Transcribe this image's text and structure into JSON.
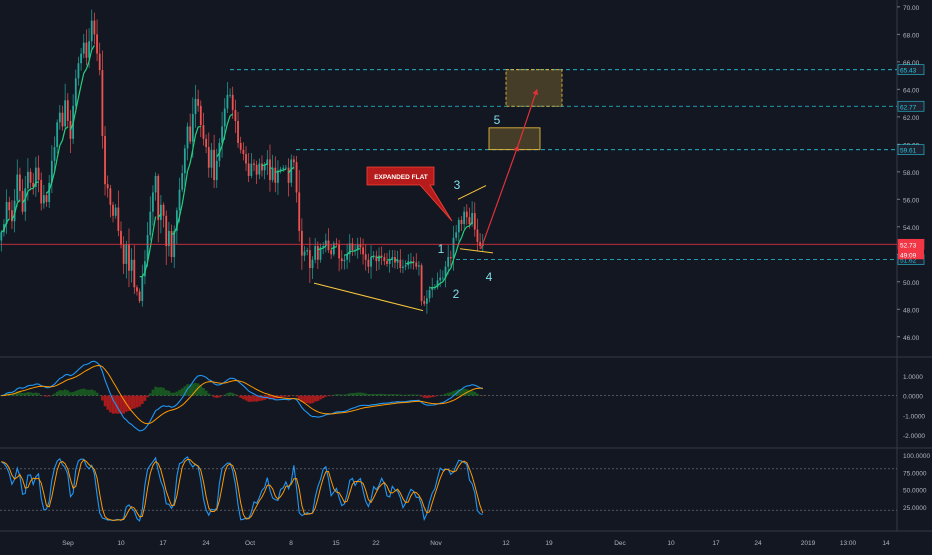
{
  "chart_data": {
    "type": "candlestick",
    "main_pane": {
      "y_axis_ticks": [
        70.0,
        68.0,
        66.0,
        64.0,
        62.0,
        60.0,
        58.0,
        56.0,
        54.0,
        52.0,
        50.0,
        48.0,
        46.0
      ],
      "ylim": [
        44.6,
        70.5
      ],
      "candle_closes": [
        53.6,
        54.2,
        55.8,
        55.2,
        54.4,
        55.9,
        57.8,
        56.6,
        55.1,
        56.8,
        58.0,
        57.2,
        56.9,
        58.3,
        57.4,
        55.7,
        56.3,
        55.8,
        57.2,
        58.8,
        59.8,
        61.6,
        62.3,
        61.3,
        63.2,
        61.7,
        60.4,
        62.8,
        64.8,
        65.9,
        66.6,
        67.4,
        66.3,
        67.5,
        69.0,
        68.0,
        66.6,
        65.4,
        60.6,
        57.1,
        56.8,
        55.6,
        54.8,
        55.4,
        53.7,
        52.7,
        51.3,
        52.7,
        50.8,
        51.6,
        49.6,
        49.3,
        48.6,
        50.4,
        51.5,
        53.4,
        55.1,
        56.5,
        57.7,
        54.5,
        55.6,
        54.8,
        52.6,
        53.7,
        51.8,
        53.7,
        55.2,
        56.7,
        57.9,
        59.7,
        61.3,
        60.2,
        62.2,
        63.3,
        62.8,
        61.4,
        60.4,
        59.8,
        58.3,
        59.6,
        57.4,
        58.8,
        60.1,
        61.3,
        62.6,
        63.6,
        63.6,
        62.5,
        61.7,
        60.1,
        59.6,
        59.3,
        58.6,
        57.7,
        58.6,
        58.5,
        57.8,
        58.6,
        58.1,
        58.5,
        58.9,
        57.4,
        58.3,
        57.2,
        58.1,
        58.2,
        58.3,
        58.3,
        57.2,
        58.9,
        58.7,
        56.5,
        53.7,
        51.9,
        52.2,
        52.3,
        51.0,
        51.6,
        52.6,
        51.6,
        52.5,
        52.6,
        53.0,
        52.3,
        52.0,
        52.8,
        52.7,
        51.7,
        51.5,
        51.6,
        52.0,
        52.8,
        52.3,
        52.3,
        52.7,
        52.5,
        52.0,
        51.6,
        51.1,
        51.8,
        51.9,
        51.5,
        51.9,
        51.8,
        51.5,
        51.3,
        51.6,
        51.8,
        51.4,
        51.6,
        51.0,
        51.1,
        51.2,
        51.5,
        51.5,
        51.4,
        51.1,
        51.2,
        48.6,
        48.4,
        48.8,
        49.4,
        49.6,
        49.6,
        50.1,
        50.3,
        50.3,
        51.1,
        51.8,
        51.7,
        53.2,
        53.6,
        54.5,
        54.2,
        55.1,
        54.7,
        54.2,
        55.0,
        53.8,
        52.9,
        52.6,
        52.8
      ],
      "trend_line_color": "#f23645",
      "support_line_color": "#26a69a",
      "horizontal_levels": [
        {
          "value": 65.43,
          "label": "65.43",
          "style": "dashed",
          "color": "#26c6da"
        },
        {
          "value": 62.77,
          "label": "62.77",
          "style": "dashed",
          "color": "#26c6da"
        },
        {
          "value": 59.61,
          "label": "59.61",
          "style": "dashed",
          "color": "#26c6da"
        },
        {
          "value": 51.62,
          "label": "51.62",
          "style": "dashed",
          "color": "#26c6da"
        },
        {
          "value": 52.73,
          "label": "52.73",
          "style": "solid",
          "color": "#f23645"
        }
      ],
      "price_badge_second": "49:09",
      "annotations": {
        "callout": "EXPANDED FLAT",
        "wave_labels": [
          "1",
          "2",
          "3",
          "4",
          "5"
        ],
        "target_zones": [
          {
            "from": 59.61,
            "to": 61.2
          },
          {
            "from": 62.77,
            "to": 65.43
          }
        ]
      }
    },
    "macd_pane": {
      "y_axis_ticks": [
        "1.0000",
        "0.0000",
        "-1.0000",
        "-2.0000"
      ],
      "ylim": [
        -2.6,
        1.9
      ]
    },
    "stoch_pane": {
      "y_axis_ticks": [
        "100.0000",
        "75.0000",
        "50.0000",
        "25.0000"
      ],
      "ylim": [
        0,
        100
      ],
      "levels": [
        80,
        20
      ]
    },
    "x_axis_labels": [
      "Sep",
      "10",
      "17",
      "24",
      "Oct",
      "8",
      "15",
      "22",
      "Nov",
      "12",
      "19",
      "Dec",
      "10",
      "17",
      "24",
      "2019",
      "13:00",
      "14"
    ],
    "colors": {
      "background": "#131722",
      "up": "#26a69a",
      "down": "#ef5350",
      "macd_line": "#2196f3",
      "signal_line": "#ff9800",
      "projection": "#e0313b",
      "abc_lines": "#f9c83c"
    }
  }
}
